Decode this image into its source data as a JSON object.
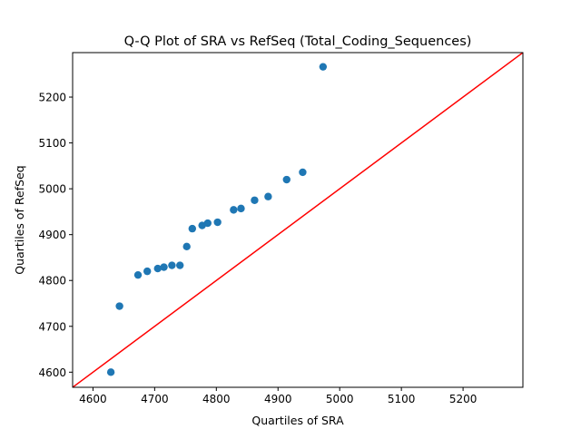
{
  "chart_data": {
    "type": "scatter",
    "title": "Q-Q Plot of SRA vs RefSeq (Total_Coding_Sequences)",
    "xlabel": "Quartiles of SRA",
    "ylabel": "Quartiles of RefSeq",
    "xlim": [
      4567,
      5297
    ],
    "ylim": [
      4567,
      5297
    ],
    "xticks": [
      "4600",
      "4700",
      "4800",
      "4900",
      "5000",
      "5100",
      "5200"
    ],
    "yticks": [
      "4600",
      "4700",
      "4800",
      "4900",
      "5000",
      "5100",
      "5200"
    ],
    "grid": false,
    "legend": "none",
    "point_color": "#1f77b4",
    "line_color": "#ff0000",
    "reference_line": [
      [
        4567,
        4567
      ],
      [
        5297,
        5297
      ]
    ],
    "points": [
      [
        4629,
        4600
      ],
      [
        4643,
        4744
      ],
      [
        4673,
        4812
      ],
      [
        4688,
        4820
      ],
      [
        4705,
        4826
      ],
      [
        4715,
        4829
      ],
      [
        4728,
        4833
      ],
      [
        4741,
        4833
      ],
      [
        4752,
        4874
      ],
      [
        4761,
        4913
      ],
      [
        4777,
        4920
      ],
      [
        4786,
        4925
      ],
      [
        4802,
        4927
      ],
      [
        4828,
        4954
      ],
      [
        4840,
        4957
      ],
      [
        4862,
        4975
      ],
      [
        4884,
        4983
      ],
      [
        4914,
        5020
      ],
      [
        4940,
        5036
      ],
      [
        4973,
        5266
      ]
    ]
  }
}
